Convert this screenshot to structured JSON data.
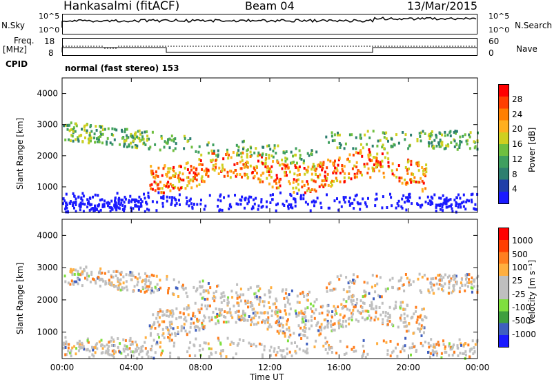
{
  "header": {
    "station": "Hankasalmi (fitACF)",
    "beam": "Beam 04",
    "date": "13/Mar/2015"
  },
  "status_panel": {
    "nsky_label": "N.Sky",
    "nsky_ticks": [
      "10^5",
      "10^0"
    ],
    "nsearch_label": "N.Search",
    "nsearch_ticks": [
      "10^5",
      "10^0"
    ],
    "freq_label": "Freq.",
    "freq_unit": "[MHz]",
    "freq_ticks": [
      "18",
      "8"
    ],
    "nave_label": "Nave",
    "nave_ticks": [
      "60",
      "0"
    ],
    "cpid_label": "CPID",
    "cpid_text": "normal (fast stereo) 153"
  },
  "chart_data": [
    {
      "type": "heatmap",
      "name": "power",
      "ylabel": "Slant Range [km]",
      "ylim": [
        180,
        4500
      ],
      "yticks": [
        "4000",
        "3000",
        "2000",
        "1000"
      ],
      "colorbar_label": "Power [dB]",
      "colorbar_ticks": [
        "28",
        "24",
        "20",
        "16",
        "12",
        "8",
        "4"
      ],
      "colors": [
        "#1a1aff",
        "#1f3fa8",
        "#2e7f6f",
        "#3f9f5f",
        "#6fbf3f",
        "#cfcf1f",
        "#ffaf1f",
        "#ff7f00",
        "#ff3f00",
        "#ff0000"
      ]
    },
    {
      "type": "heatmap",
      "name": "velocity",
      "ylabel": "Slant Range [km]",
      "ylim": [
        180,
        4500
      ],
      "yticks": [
        "4000",
        "3000",
        "2000",
        "1000"
      ],
      "colorbar_label": "Velocity [m s⁻¹]",
      "colorbar_ticks": [
        "1000",
        "500",
        "100",
        "25",
        "-25",
        "-100",
        "-500",
        "-1000"
      ],
      "colors": [
        "#1a1aff",
        "#3f5fbf",
        "#3f9f3f",
        "#7fdf3f",
        "#bfbfbf",
        "#bfbfbf",
        "#ffaf3f",
        "#ff7f1f",
        "#ff3f00",
        "#ff0000"
      ]
    }
  ],
  "xaxis": {
    "label": "Time UT",
    "ticks": [
      "00:00",
      "04:00",
      "08:00",
      "12:00",
      "16:00",
      "20:00",
      "00:00"
    ]
  }
}
